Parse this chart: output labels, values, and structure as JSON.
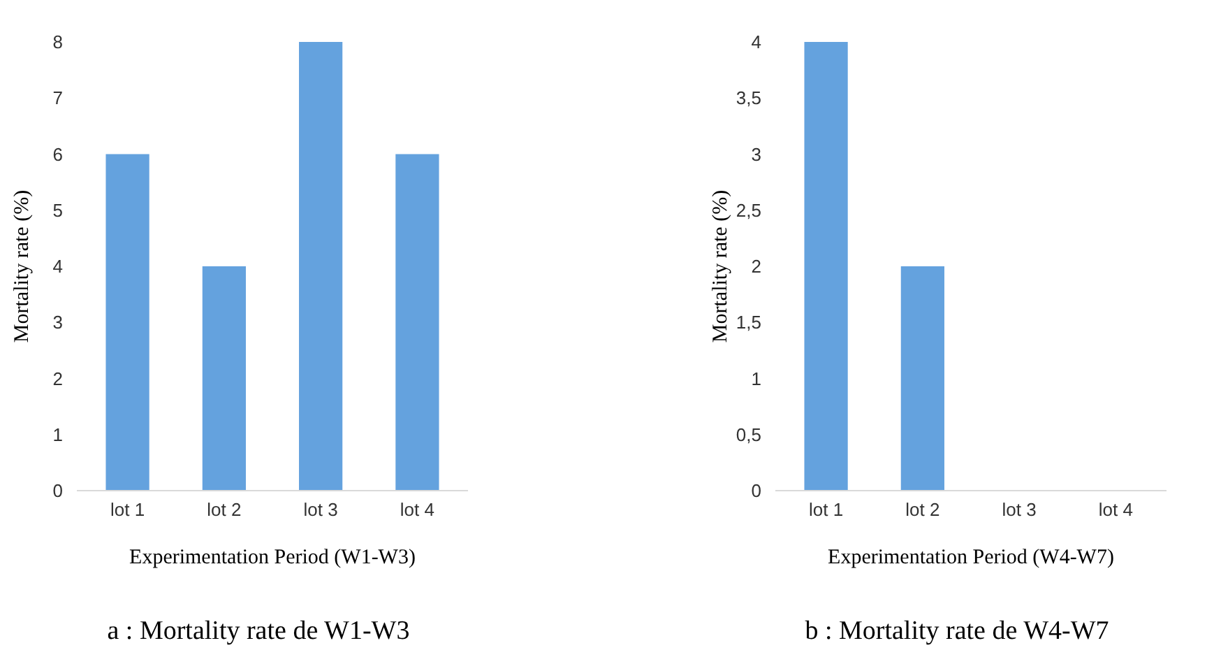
{
  "chart_data": [
    {
      "type": "bar",
      "title": "a : Mortality rate de W1-W3",
      "xlabel": "Experimentation Period (W1-W3)",
      "ylabel": "Mortality rate (%)",
      "categories": [
        "lot 1",
        "lot 2",
        "lot 3",
        "lot 4"
      ],
      "values": [
        6,
        4,
        8,
        6
      ],
      "color": "#64a2de",
      "ylim": [
        0,
        8
      ],
      "yticks": [
        0,
        1,
        2,
        3,
        4,
        5,
        6,
        7,
        8
      ],
      "grid": false
    },
    {
      "type": "bar",
      "title": "b : Mortality rate de W4-W7",
      "xlabel": "Experimentation Period (W4-W7)",
      "ylabel": "Mortality rate (%)",
      "categories": [
        "lot 1",
        "lot 2",
        "lot 3",
        "lot 4"
      ],
      "values": [
        4,
        2,
        0,
        0
      ],
      "color": "#64a2de",
      "ylim": [
        0,
        4
      ],
      "yticks": [
        0,
        {
          "value": 0.5,
          "label": "0,5"
        },
        1,
        {
          "value": 1.5,
          "label": "1,5"
        },
        2,
        {
          "value": 2.5,
          "label": "2,5"
        },
        3,
        {
          "value": 3.5,
          "label": "3,5"
        },
        4
      ],
      "grid": false
    }
  ]
}
